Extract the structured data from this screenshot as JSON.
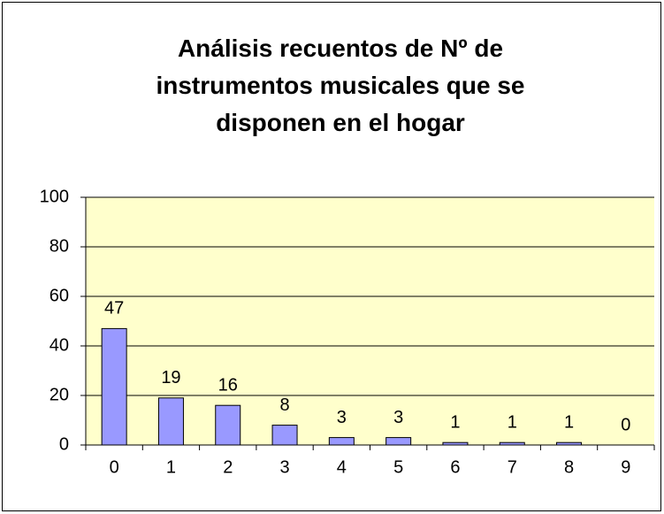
{
  "chart_data": {
    "type": "bar",
    "title": "Análisis recuentos de Nº de instrumentos musicales que se disponen en el hogar",
    "categories": [
      "0",
      "1",
      "2",
      "3",
      "4",
      "5",
      "6",
      "7",
      "8",
      "9"
    ],
    "values": [
      47,
      19,
      16,
      8,
      3,
      3,
      1,
      1,
      1,
      0
    ],
    "color": "#9999ff",
    "ylim": [
      0,
      100
    ],
    "yticks": [
      0,
      20,
      40,
      60,
      80,
      100
    ],
    "grid": true
  }
}
